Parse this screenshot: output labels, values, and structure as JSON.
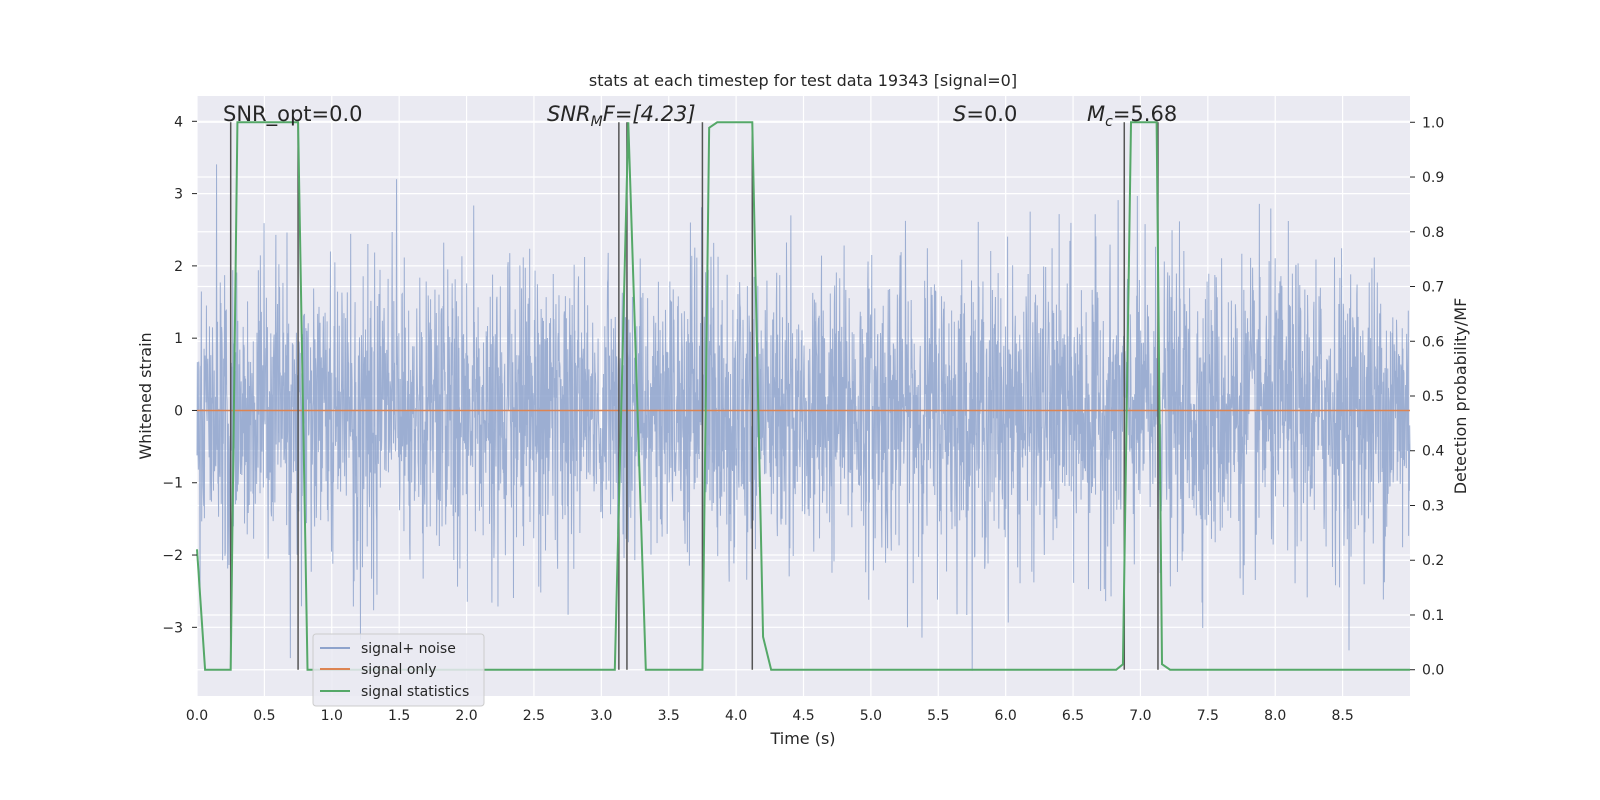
{
  "chart_data": {
    "type": "line",
    "title": "stats at each timestep for test data 19343 [signal=0]",
    "xlabel": "Time (s)",
    "ylabel": "Whitened strain",
    "ylabel_right": "Detection probability/MF",
    "xlim": [
      0.0,
      9.0
    ],
    "ylim": [
      -3.95,
      4.35
    ],
    "ylim_right": [
      -0.048,
      1.048
    ],
    "x_ticks": [
      "0.0",
      "0.5",
      "1.0",
      "1.5",
      "2.0",
      "2.5",
      "3.0",
      "3.5",
      "4.0",
      "4.5",
      "5.0",
      "5.5",
      "6.0",
      "6.5",
      "7.0",
      "7.5",
      "8.0",
      "8.5"
    ],
    "y_ticks": [
      "−3",
      "−2",
      "−1",
      "0",
      "1",
      "2",
      "3",
      "4"
    ],
    "y_ticks_right": [
      "0.0",
      "0.1",
      "0.2",
      "0.3",
      "0.4",
      "0.5",
      "0.6",
      "0.7",
      "0.8",
      "0.9",
      "1.0"
    ],
    "grid": true,
    "legend_position": "lower-left",
    "annotations": {
      "snr_opt": "SNR_opt=0.0",
      "snr_mf_main": "SNR",
      "snr_mf_sub": "M",
      "snr_mf_rest": "F=[4.23]",
      "s_main": "S",
      "s_rest": "=0.0",
      "mc_main": "M",
      "mc_sub": "c",
      "mc_rest": "=5.68"
    },
    "series": [
      {
        "name": "signal+ noise",
        "color": "#8ea3cc",
        "note_style": "dense noise trace"
      },
      {
        "name": "signal only",
        "color": "#dd8452",
        "x": [
          0.0,
          9.0
        ],
        "y": [
          0.0,
          0.0
        ]
      },
      {
        "name": "signal statistics",
        "color": "#55a868",
        "x": [
          0.0,
          0.06,
          0.25,
          0.3,
          0.35,
          0.73,
          0.75,
          0.82,
          3.1,
          3.2,
          3.33,
          3.75,
          3.8,
          3.86,
          4.12,
          4.2,
          4.26,
          6.82,
          6.87,
          6.93,
          7.12,
          7.16,
          7.22,
          8.2,
          9.0
        ],
        "y": [
          0.22,
          0.0,
          0.0,
          1.0,
          1.0,
          1.0,
          1.0,
          0.0,
          0.0,
          1.0,
          0.0,
          0.0,
          0.99,
          1.0,
          1.0,
          0.06,
          0.0,
          0.0,
          0.01,
          1.0,
          1.0,
          0.01,
          0.0,
          0.0,
          0.0
        ]
      },
      {
        "name": "",
        "color": "#555555",
        "note_style": "vertical event markers",
        "x": [
          0.25,
          0.75,
          3.13,
          3.19,
          3.75,
          4.12,
          6.88,
          7.13
        ]
      }
    ]
  }
}
